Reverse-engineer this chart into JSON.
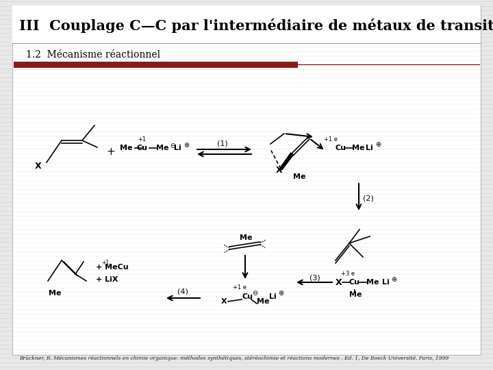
{
  "title": "III  Couplage C—C par l'intermédiaire de métaux de transition",
  "subtitle": "1.2  Mécanisme réactionnel",
  "footer": "Brückner, R. Mécanismes réactionnels en chimie organique: méthodes synthétiques, stéréochimie et réactions modernes , Ed. 1, De Boeck Université, Paris, 1999",
  "bg_color": "#e8e8e8",
  "slide_bg": "#ffffff",
  "red_bar_color": "#8b1a1a",
  "title_color": "#000000",
  "subtitle_color": "#000000",
  "title_fontsize": 15,
  "subtitle_fontsize": 10,
  "footer_fontsize": 5.5,
  "line_color": "#bbbbbb",
  "dark_line_color": "#555555"
}
